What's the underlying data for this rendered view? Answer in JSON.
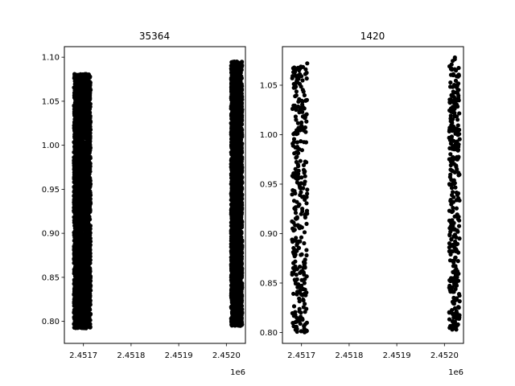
{
  "chart_data": [
    {
      "type": "scatter",
      "title": "35364",
      "xlabel": "",
      "ylabel": "",
      "x_offset_label": "1e6",
      "xlim": [
        2.45166,
        2.45204
      ],
      "ylim": [
        0.775,
        1.112
      ],
      "x_ticks": [
        2.4517,
        2.4518,
        2.4519,
        2.452
      ],
      "x_tick_labels": [
        "2.4517",
        "2.4518",
        "2.4519",
        "2.4520"
      ],
      "y_ticks": [
        0.8,
        0.85,
        0.9,
        0.95,
        1.0,
        1.05,
        1.1
      ],
      "y_tick_labels": [
        "0.80",
        "0.85",
        "0.90",
        "0.95",
        "1.00",
        "1.05",
        "1.10"
      ],
      "marker_color": "#000000",
      "grid": false,
      "clusters": [
        {
          "x_range": [
            2.45168,
            2.451715
          ],
          "y_range": [
            0.792,
            1.081
          ],
          "density": "dense",
          "outliers": []
        },
        {
          "x_range": [
            2.45201,
            2.452033
          ],
          "y_range": [
            0.795,
            1.095
          ],
          "density": "dense",
          "outliers": [
            [
              2.452022,
              1.095
            ],
            [
              2.452024,
              1.088
            ]
          ]
        }
      ]
    },
    {
      "type": "scatter",
      "title": "1420",
      "xlabel": "",
      "ylabel": "",
      "x_offset_label": "1e6",
      "xlim": [
        2.45166,
        2.45204
      ],
      "ylim": [
        0.789,
        1.089
      ],
      "x_ticks": [
        2.4517,
        2.4518,
        2.4519,
        2.452
      ],
      "x_tick_labels": [
        "2.4517",
        "2.4518",
        "2.4519",
        "2.4520"
      ],
      "y_ticks": [
        0.8,
        0.85,
        0.9,
        0.95,
        1.0,
        1.05
      ],
      "y_tick_labels": [
        "0.80",
        "0.85",
        "0.90",
        "0.95",
        "1.00",
        "1.05"
      ],
      "marker_color": "#000000",
      "grid": false,
      "clusters": [
        {
          "x_range": [
            2.45168,
            2.451712
          ],
          "y_range": [
            0.8,
            1.075
          ],
          "density": "sparse",
          "outliers": []
        },
        {
          "x_range": [
            2.45201,
            2.452032
          ],
          "y_range": [
            0.8,
            1.078
          ],
          "density": "sparse",
          "outliers": [
            [
              2.452022,
              1.078
            ]
          ]
        }
      ]
    }
  ]
}
